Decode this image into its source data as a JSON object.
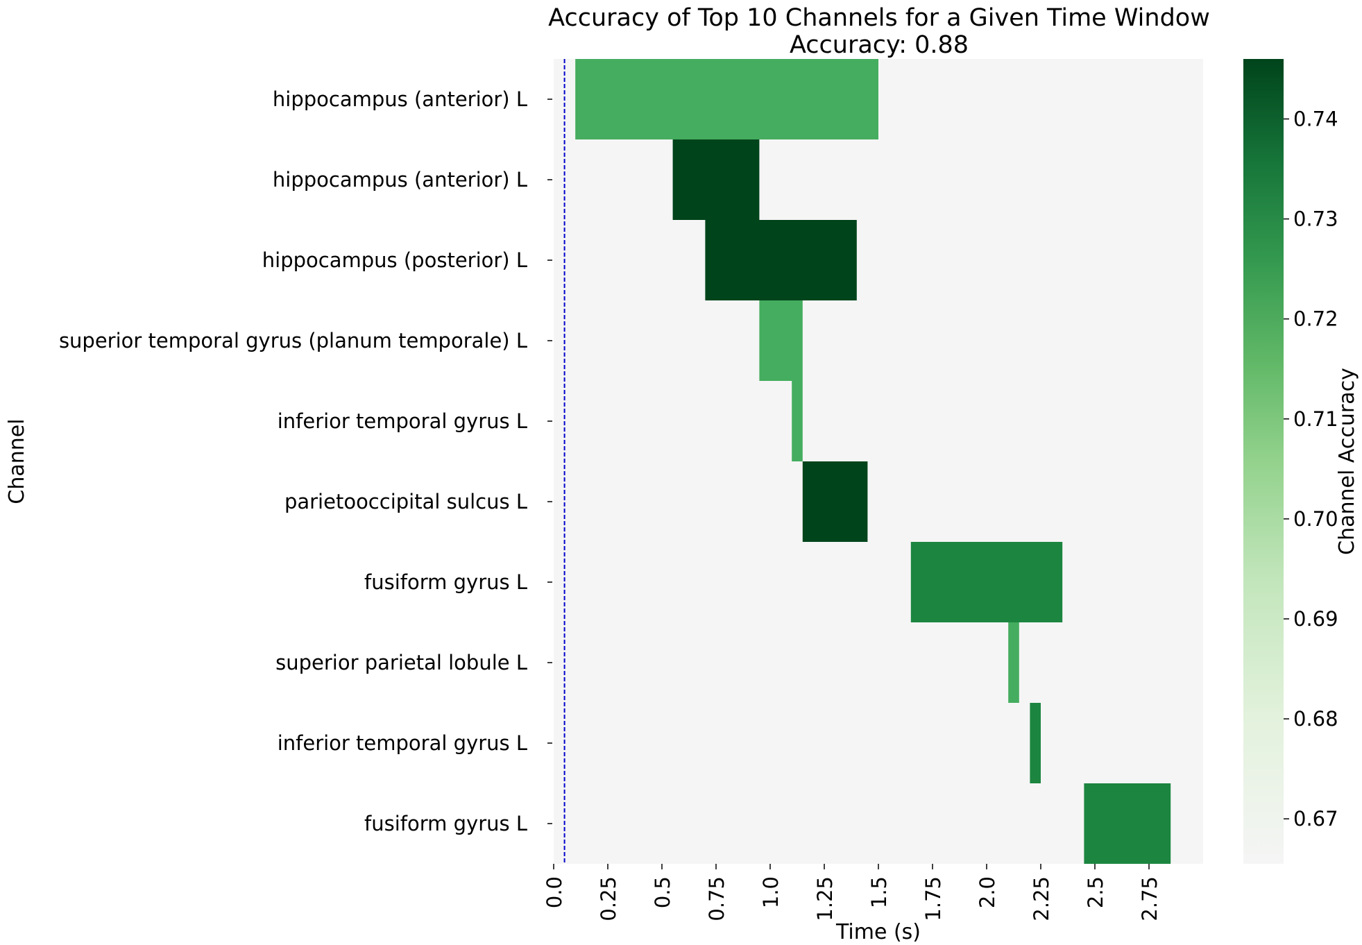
{
  "chart_data": {
    "type": "heatmap",
    "title": "Accuracy of Top 10 Channels for a Given Time Window",
    "subtitle": "Accuracy: 0.88",
    "xlabel": "Time (s)",
    "ylabel": "Channel",
    "colorbar_label": "Channel Accuracy",
    "x_ticks": [
      "0.0",
      "0.25",
      "0.5",
      "0.75",
      "1.0",
      "1.25",
      "1.5",
      "1.75",
      "2.0",
      "2.25",
      "2.5",
      "2.75"
    ],
    "x_tick_values": [
      0.0,
      0.25,
      0.5,
      0.75,
      1.0,
      1.25,
      1.5,
      1.75,
      2.0,
      2.25,
      2.5,
      2.75
    ],
    "xlim": [
      0.0,
      3.0
    ],
    "colorbar_ticks": [
      "0.67",
      "0.68",
      "0.69",
      "0.70",
      "0.71",
      "0.72",
      "0.73",
      "0.74"
    ],
    "colorbar_tick_values": [
      0.67,
      0.68,
      0.69,
      0.7,
      0.71,
      0.72,
      0.73,
      0.74
    ],
    "clim": [
      0.6655,
      0.746
    ],
    "background_color": "#f5f5f5",
    "onset_line": {
      "x": 0.05,
      "color": "#0000cc",
      "style": "dashed"
    },
    "channels": [
      "hippocampus (anterior) L",
      "hippocampus (anterior) L",
      "hippocampus (posterior) L",
      "superior temporal gyrus (planum temporale) L",
      "inferior temporal gyrus L",
      "parietooccipital sulcus L",
      "fusiform gyrus L",
      "superior parietal lobule L",
      "inferior temporal gyrus L",
      "fusiform gyrus L"
    ],
    "windows": [
      {
        "row": 0,
        "start": 0.1,
        "end": 1.5,
        "accuracy": 0.715
      },
      {
        "row": 1,
        "start": 0.55,
        "end": 0.95,
        "accuracy": 0.746
      },
      {
        "row": 2,
        "start": 0.7,
        "end": 1.4,
        "accuracy": 0.746
      },
      {
        "row": 3,
        "start": 0.95,
        "end": 1.15,
        "accuracy": 0.715
      },
      {
        "row": 4,
        "start": 1.1,
        "end": 1.15,
        "accuracy": 0.715
      },
      {
        "row": 5,
        "start": 1.15,
        "end": 1.45,
        "accuracy": 0.746
      },
      {
        "row": 6,
        "start": 1.65,
        "end": 2.35,
        "accuracy": 0.728
      },
      {
        "row": 7,
        "start": 2.1,
        "end": 2.15,
        "accuracy": 0.715
      },
      {
        "row": 8,
        "start": 2.2,
        "end": 2.25,
        "accuracy": 0.728
      },
      {
        "row": 9,
        "start": 2.45,
        "end": 2.85,
        "accuracy": 0.728
      }
    ],
    "colormap": [
      "#f7fcf5",
      "#e5f5e0",
      "#c7e9c0",
      "#a1d99b",
      "#74c476",
      "#41ab5d",
      "#238b45",
      "#006d2c",
      "#00441b"
    ]
  }
}
